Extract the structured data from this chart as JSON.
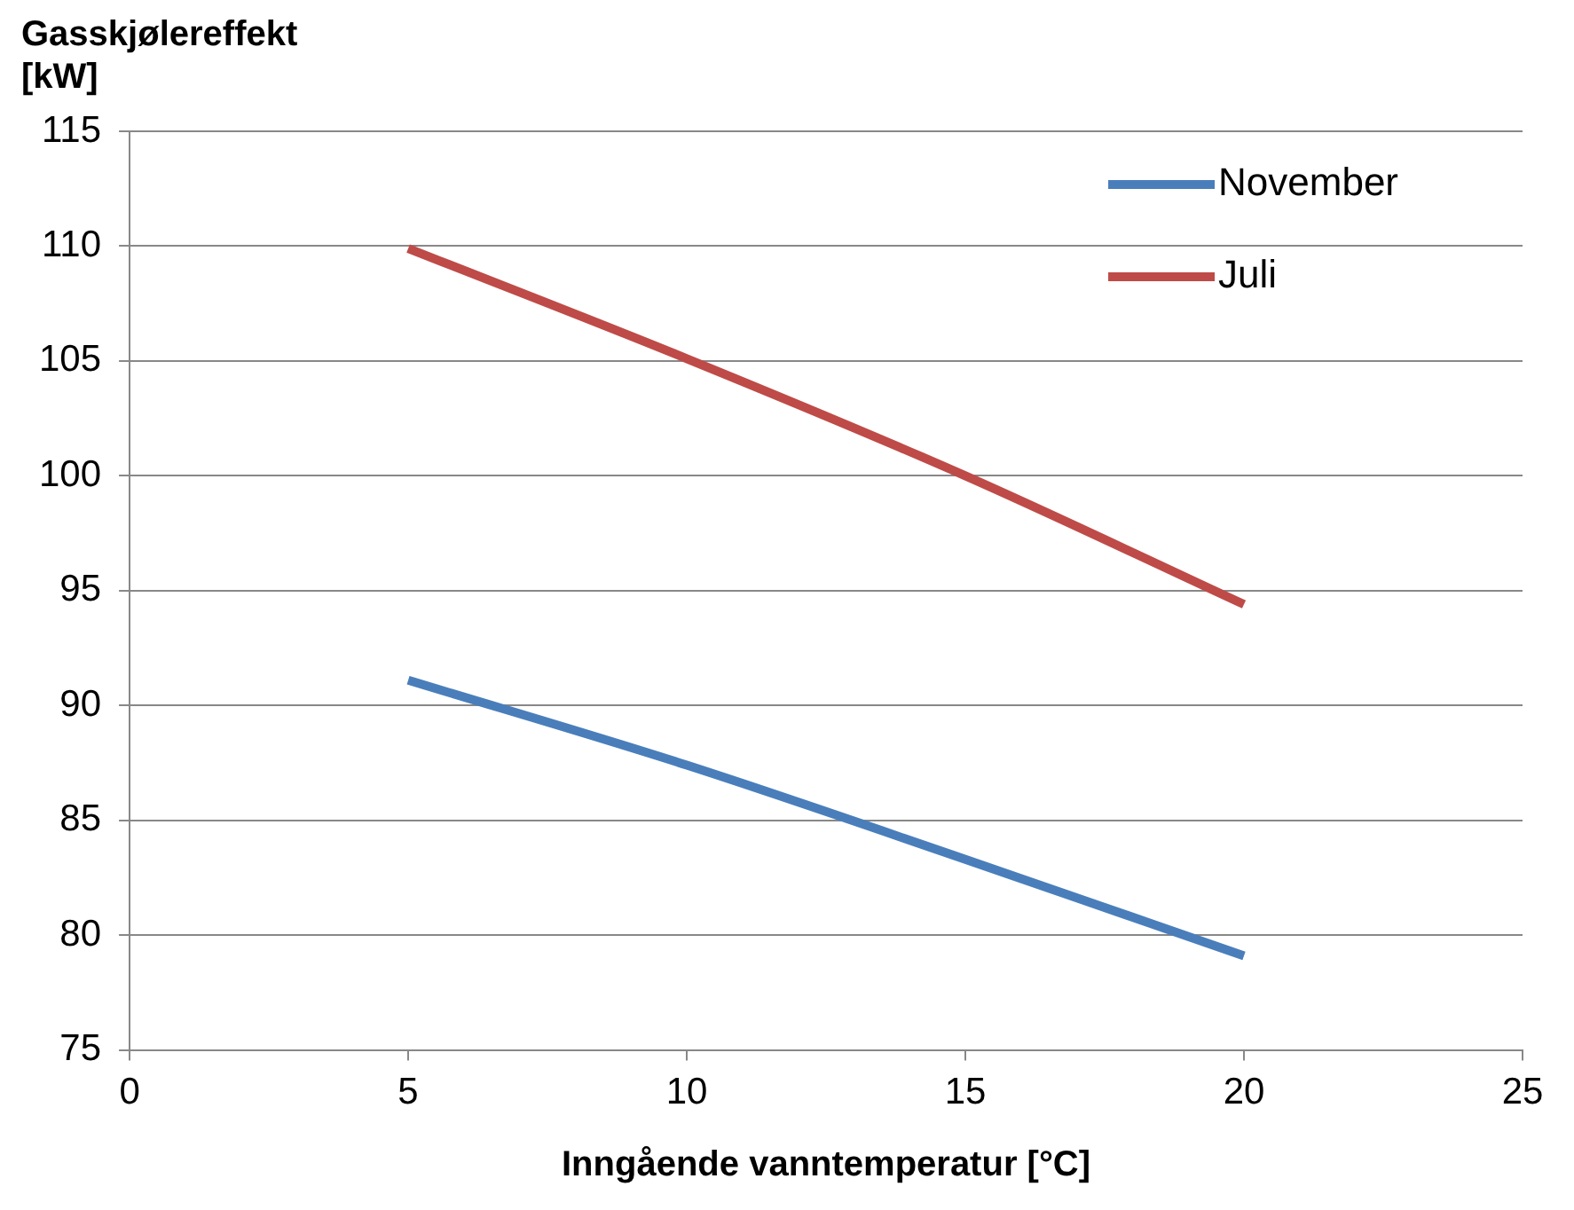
{
  "chart_data": {
    "type": "line",
    "ylabel": "Gasskjølereffekt\n[kW]",
    "xlabel": "Inngående vanntemperatur [°C]",
    "x": [
      5,
      10,
      15,
      20
    ],
    "series": [
      {
        "name": "November",
        "color": "#4a7ebb",
        "values": [
          91.1,
          87.4,
          83.3,
          79.1
        ]
      },
      {
        "name": "Juli",
        "color": "#be4b48",
        "values": [
          109.9,
          105.1,
          100,
          94.4
        ]
      }
    ],
    "xlim": [
      0,
      25
    ],
    "xticks": [
      0,
      5,
      10,
      15,
      20,
      25
    ],
    "ylim": [
      75,
      115
    ],
    "yticks": [
      75,
      80,
      85,
      90,
      95,
      100,
      105,
      110,
      115
    ],
    "grid": "y",
    "legend": "top right",
    "marker": "none",
    "line_style": "solid"
  }
}
